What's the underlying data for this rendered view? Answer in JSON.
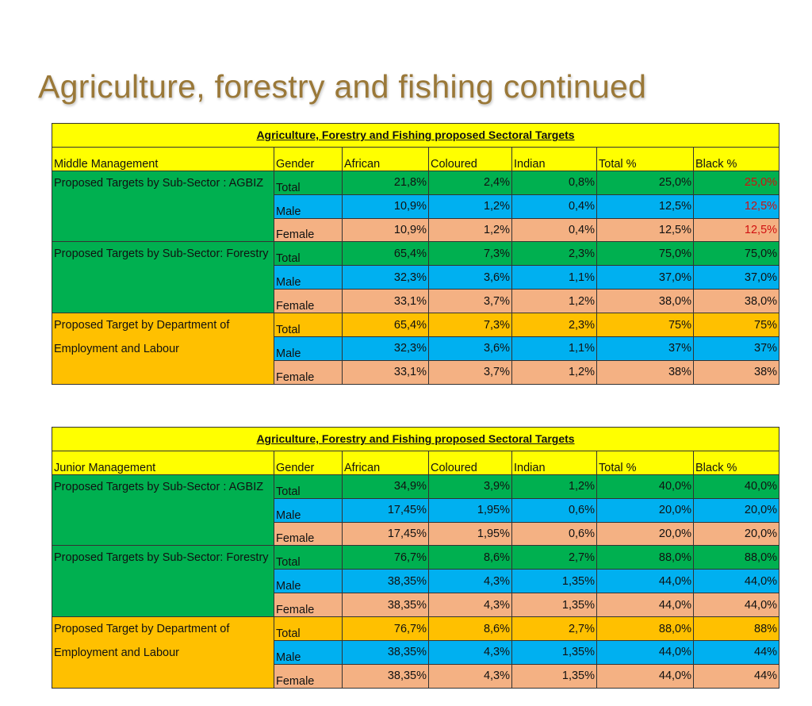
{
  "page_title": "Agriculture, forestry and fishing continued",
  "colors": {
    "header": "#ffff00",
    "total_green": "#00b050",
    "male_blue": "#00b0f0",
    "female_salmon": "#f4b183",
    "department_orange": "#ffc000",
    "highlight_red": "#d01010"
  },
  "tables": [
    {
      "caption": "Agriculture, Forestry and  Fishing proposed Sectoral Targets",
      "columns": [
        "Middle  Management",
        "Gender",
        "African",
        "Coloured",
        "Indian",
        "Total %",
        "Black %"
      ],
      "groups": [
        {
          "label": "Proposed Targets by  Sub-Sector : AGBIZ",
          "color": "green",
          "black_red": true,
          "rows": [
            [
              "Total",
              "21,8%",
              "2,4%",
              "0,8%",
              "25,0%",
              "25,0%"
            ],
            [
              "Male",
              "10,9%",
              "1,2%",
              "0,4%",
              "12,5%",
              "12,5%"
            ],
            [
              "Female",
              "10,9%",
              "1,2%",
              "0,4%",
              "12,5%",
              "12,5%"
            ]
          ]
        },
        {
          "label": "Proposed Targets by Sub-Sector: Forestry",
          "color": "green",
          "black_red": false,
          "rows": [
            [
              "Total",
              "65,4%",
              "7,3%",
              "2,3%",
              "75,0%",
              "75,0%"
            ],
            [
              "Male",
              "32,3%",
              "3,6%",
              "1,1%",
              "37,0%",
              "37,0%"
            ],
            [
              "Female",
              "33,1%",
              "3,7%",
              "1,2%",
              "38,0%",
              "38,0%"
            ]
          ]
        },
        {
          "label": "Proposed Target by Department of Employment and Labour",
          "color": "orange",
          "black_red": false,
          "rows": [
            [
              "Total",
              "65,4%",
              "7,3%",
              "2,3%",
              "75%",
              "75%"
            ],
            [
              "Male",
              "32,3%",
              "3,6%",
              "1,1%",
              "37%",
              "37%"
            ],
            [
              "Female",
              "33,1%",
              "3,7%",
              "1,2%",
              "38%",
              "38%"
            ]
          ]
        }
      ]
    },
    {
      "caption": "Agriculture, Forestry and  Fishing proposed Sectoral Targets",
      "columns": [
        "Junior  Management",
        "Gender",
        "African",
        "Coloured",
        "Indian",
        "Total %",
        "Black %"
      ],
      "groups": [
        {
          "label": "Proposed Targets by  Sub-Sector : AGBIZ",
          "color": "green",
          "black_red": false,
          "rows": [
            [
              "Total",
              "34,9%",
              "3,9%",
              "1,2%",
              "40,0%",
              "40,0%"
            ],
            [
              "Male",
              "17,45%",
              "1,95%",
              "0,6%",
              "20,0%",
              "20,0%"
            ],
            [
              "Female",
              "17,45%",
              "1,95%",
              "0,6%",
              "20,0%",
              "20,0%"
            ]
          ]
        },
        {
          "label": "Proposed Targets by Sub-Sector: Forestry",
          "color": "green",
          "black_red": false,
          "rows": [
            [
              "Total",
              "76,7%",
              "8,6%",
              "2,7%",
              "88,0%",
              "88,0%"
            ],
            [
              "Male",
              "38,35%",
              "4,3%",
              "1,35%",
              "44,0%",
              "44,0%"
            ],
            [
              "Female",
              "38,35%",
              "4,3%",
              "1,35%",
              "44,0%",
              "44,0%"
            ]
          ]
        },
        {
          "label": "Proposed Target by Department of Employment and Labour",
          "color": "orange",
          "black_red": false,
          "rows": [
            [
              "Total",
              "76,7%",
              "8,6%",
              "2,7%",
              "88,0%",
              "88%"
            ],
            [
              "Male",
              "38,35%",
              "4,3%",
              "1,35%",
              "44,0%",
              "44%"
            ],
            [
              "Female",
              "38,35%",
              "4,3%",
              "1,35%",
              "44,0%",
              "44%"
            ]
          ]
        }
      ]
    }
  ]
}
